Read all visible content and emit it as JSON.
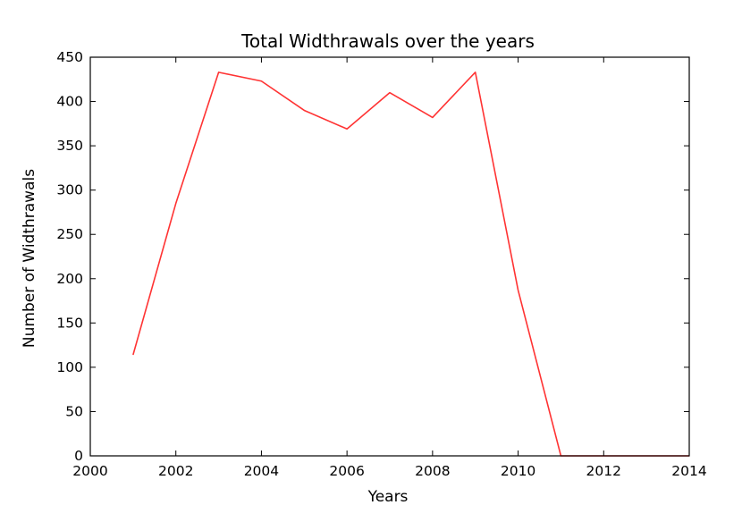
{
  "chart_data": {
    "type": "line",
    "title": "Total Widthrawals over the years",
    "xlabel": "Years",
    "ylabel": "Number of Widthrawals",
    "xlim": [
      2000,
      2014
    ],
    "ylim": [
      0,
      450
    ],
    "xticks": [
      2000,
      2002,
      2004,
      2006,
      2008,
      2010,
      2012,
      2014
    ],
    "yticks": [
      0,
      50,
      100,
      150,
      200,
      250,
      300,
      350,
      400,
      450
    ],
    "grid": false,
    "series": [
      {
        "color": "#ff3333",
        "x": [
          2001,
          2002,
          2003,
          2004,
          2005,
          2006,
          2007,
          2008,
          2009,
          2010,
          2011,
          2012,
          2013,
          2014
        ],
        "y": [
          114,
          285,
          433,
          423,
          390,
          369,
          410,
          382,
          433,
          187,
          0,
          0,
          0,
          0
        ]
      }
    ]
  }
}
